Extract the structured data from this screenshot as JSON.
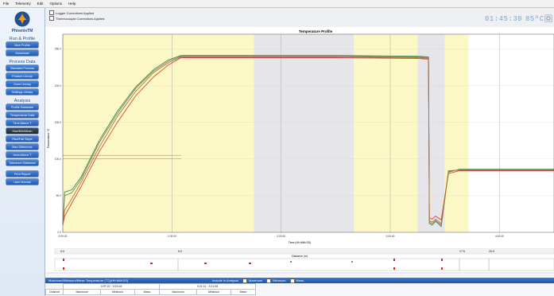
{
  "menu": [
    "File",
    "Telemetry",
    "Edit",
    "Options",
    "Help"
  ],
  "sidebar": {
    "brand": "PhoenixTM",
    "sections": [
      {
        "title": "Run & Profile",
        "buttons": [
          "New Profile",
          "Download"
        ]
      },
      {
        "title": "Process Data",
        "buttons": [
          "Standard Process",
          "Product Library",
          "Oven Library",
          "Settings Library"
        ]
      },
      {
        "title": "Analysis",
        "buttons": [
          "Profile Database",
          "Temperature Data",
          "Time Above T",
          "Max/Min/Mean",
          "Rise/Fall Slope",
          "Max Difference",
          "Area Above T",
          "Tolerance Database"
        ]
      }
    ],
    "extra_buttons": [
      "Print Report",
      "User Manual"
    ],
    "active_button": "Max/Min/Mean"
  },
  "toolbar": {
    "logger_corrections": "Logger Corrections Applied",
    "thermocouple_corrections": "Thermocouple Corrections Applied",
    "time_readout": "01:45:30",
    "temp_readout": "85ºC"
  },
  "chart_data": {
    "type": "line",
    "title": "Temperature Profile",
    "xlabel": "Time (HH:MM:SS)",
    "ylabel": "Temperature °C",
    "x_ticks": [
      "0:00:00",
      "1:00:00",
      "2:00:00",
      "3:00:00",
      "4:00:00"
    ],
    "y_ticks": [
      "0.0",
      "50.0",
      "100.0",
      "150.0",
      "200.0",
      "250.0"
    ],
    "ylim": [
      0,
      270
    ],
    "xlim_minutes": [
      0,
      270
    ],
    "zones": [
      {
        "from": 0,
        "to": 105,
        "color": "#fbf8c6"
      },
      {
        "from": 105,
        "to": 160,
        "color": "#e5e5ea"
      },
      {
        "from": 160,
        "to": 195,
        "color": "#fbf8c6"
      },
      {
        "from": 195,
        "to": 210,
        "color": "#e5e5ea"
      },
      {
        "from": 210,
        "to": 223,
        "color": "#fbf8c6"
      },
      {
        "from": 223,
        "to": 270,
        "color": "#ffffff"
      }
    ],
    "limit_lines": [
      105,
      100
    ],
    "series": [
      {
        "color": "#2e8b57",
        "x": [
          0,
          1,
          5,
          10,
          20,
          30,
          40,
          50,
          58,
          65,
          100,
          150,
          195,
          201,
          201.5,
          203,
          205,
          208,
          212,
          218,
          270
        ],
        "y": [
          10,
          55,
          58,
          75,
          125,
          165,
          198,
          222,
          235,
          241,
          241,
          241,
          240,
          239,
          12,
          10,
          15,
          8,
          82,
          86,
          86
        ]
      },
      {
        "color": "#8b7d6b",
        "x": [
          0,
          1,
          5,
          10,
          20,
          30,
          40,
          50,
          58,
          65,
          100,
          150,
          195,
          201,
          201.5,
          203,
          205,
          208,
          212,
          218,
          270
        ],
        "y": [
          10,
          50,
          54,
          72,
          122,
          162,
          196,
          220,
          233,
          240,
          240,
          240,
          239,
          238,
          16,
          14,
          18,
          12,
          84,
          85,
          85
        ]
      },
      {
        "color": "#d94040",
        "x": [
          0,
          1,
          5,
          10,
          20,
          30,
          40,
          50,
          58,
          65,
          100,
          150,
          195,
          201,
          201.5,
          203,
          205,
          208,
          212,
          218,
          270
        ],
        "y": [
          10,
          22,
          40,
          62,
          110,
          150,
          186,
          212,
          228,
          238,
          238,
          238,
          237,
          236,
          20,
          18,
          22,
          17,
          80,
          84,
          84
        ]
      },
      {
        "color": "#b07a2a",
        "x": [
          0,
          1,
          5,
          10,
          20,
          30,
          40,
          50,
          58,
          65,
          100,
          150,
          195,
          201,
          201.5,
          203,
          205,
          208,
          212,
          218,
          270
        ],
        "y": [
          10,
          30,
          46,
          68,
          116,
          158,
          192,
          218,
          231,
          239,
          239,
          239,
          238,
          237,
          14,
          12,
          16,
          10,
          83,
          85,
          85
        ]
      }
    ]
  },
  "distance": {
    "axis_label": "Distance (m)",
    "ticks": [
      "0.0",
      "5.0",
      "17.5",
      "20.0"
    ]
  },
  "stats": {
    "header": "Maximum/Minimum/Mean Temperature (°C)(HH:MM:SS)",
    "include_label": "Include in Analysis",
    "options": [
      "Maximum",
      "Minimum",
      "Mean"
    ],
    "period1": "0:07:22 - 3:23:45",
    "period2": "0:21:11 - 3:21:08",
    "row_label": "Channel",
    "columns": [
      "Maximum",
      "Minimum",
      "Mean",
      "Maximum",
      "Minimum",
      "Mean"
    ]
  }
}
